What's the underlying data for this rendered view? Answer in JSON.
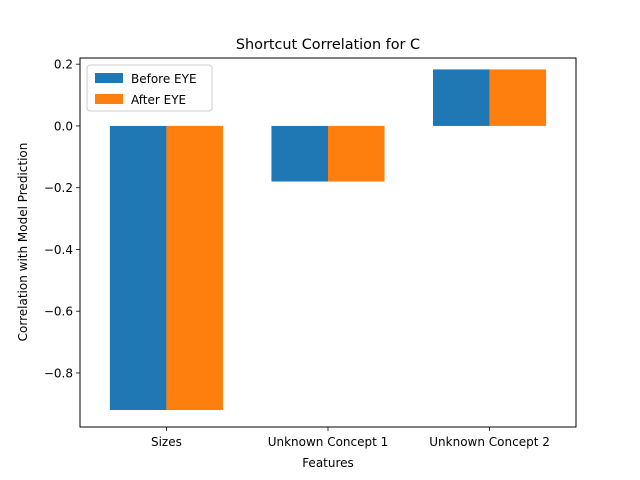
{
  "chart_data": {
    "type": "bar",
    "title": "Shortcut Correlation for C",
    "xlabel": "Features",
    "ylabel": "Correlation with Model Prediction",
    "categories": [
      "Sizes",
      "Unknown Concept 1",
      "Unknown Concept 2"
    ],
    "series": [
      {
        "name": "Before EYE",
        "color": "#1f77b4",
        "values": [
          -0.92,
          -0.18,
          0.183
        ]
      },
      {
        "name": "After EYE",
        "color": "#ff7f0e",
        "values": [
          -0.92,
          -0.18,
          0.183
        ]
      }
    ],
    "ylim": [
      -0.975,
      0.22
    ],
    "yticks": [
      0.2,
      0.0,
      -0.2,
      -0.4,
      -0.6,
      -0.8
    ],
    "ytick_labels": [
      "0.2",
      "0.0",
      "−0.2",
      "−0.4",
      "−0.6",
      "−0.8"
    ],
    "legend_position": "top-left",
    "grid": false
  }
}
